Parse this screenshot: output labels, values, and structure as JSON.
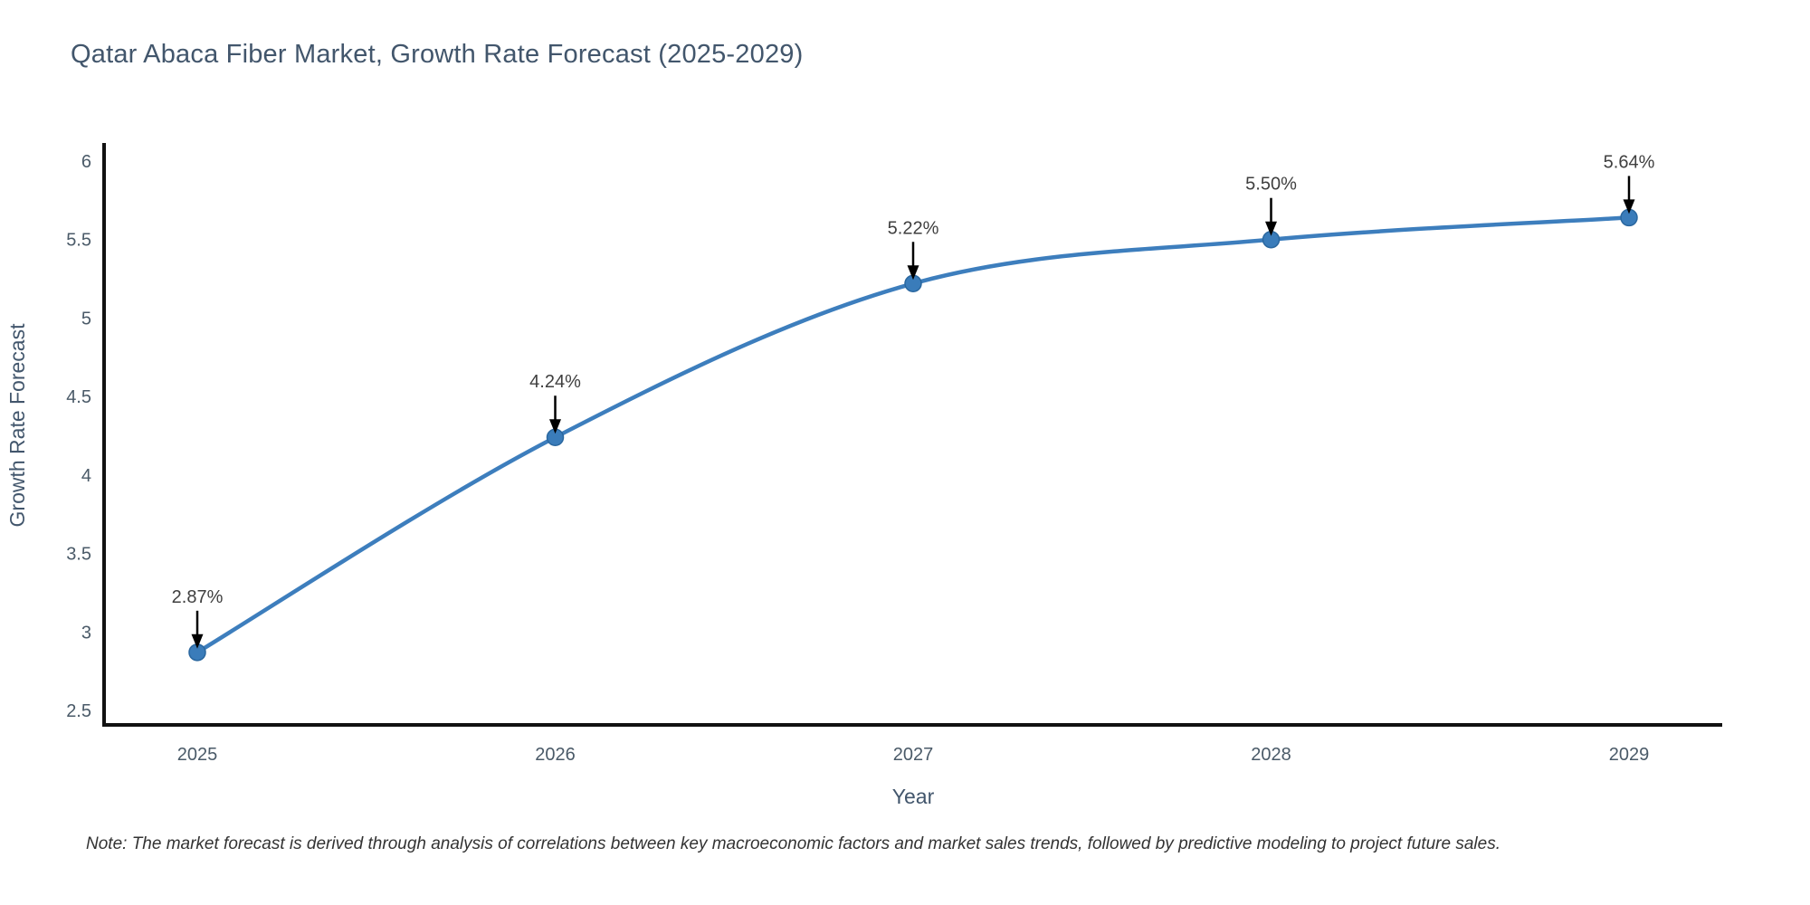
{
  "title": "Qatar Abaca Fiber Market, Growth Rate Forecast (2025-2029)",
  "note": "Note: The market forecast is derived through analysis of correlations between key macroeconomic factors and market sales trends, followed by predictive modeling to project future sales.",
  "chart_data": {
    "type": "line",
    "title": "Qatar Abaca Fiber Market, Growth Rate Forecast (2025-2029)",
    "xlabel": "Year",
    "ylabel": "Growth Rate Forecast",
    "x": [
      "2025",
      "2026",
      "2027",
      "2028",
      "2029"
    ],
    "series": [
      {
        "name": "Growth Rate Forecast",
        "values": [
          2.87,
          4.24,
          5.22,
          5.5,
          5.64
        ],
        "point_labels": [
          "2.87%",
          "4.24%",
          "5.22%",
          "5.50%",
          "5.64%"
        ]
      }
    ],
    "y_ticks": [
      "2.5",
      "3",
      "3.5",
      "4",
      "4.5",
      "5",
      "5.5",
      "6"
    ],
    "ylim": [
      2.41,
      6.1
    ],
    "line_shape": "spline",
    "grid": false,
    "legend_position": "none",
    "annotation_style": "value labels above points with black down arrows",
    "colors": {
      "line": "#3d7ebd",
      "marker_fill": "#3a7cba",
      "marker_edge": "#2a679f",
      "arrow": "#000000",
      "axis_line": "#111111",
      "title_text": "#42566c",
      "tick_text": "#4a5a68",
      "annotation_text": "#3f3f3f",
      "background": "#ffffff"
    }
  }
}
